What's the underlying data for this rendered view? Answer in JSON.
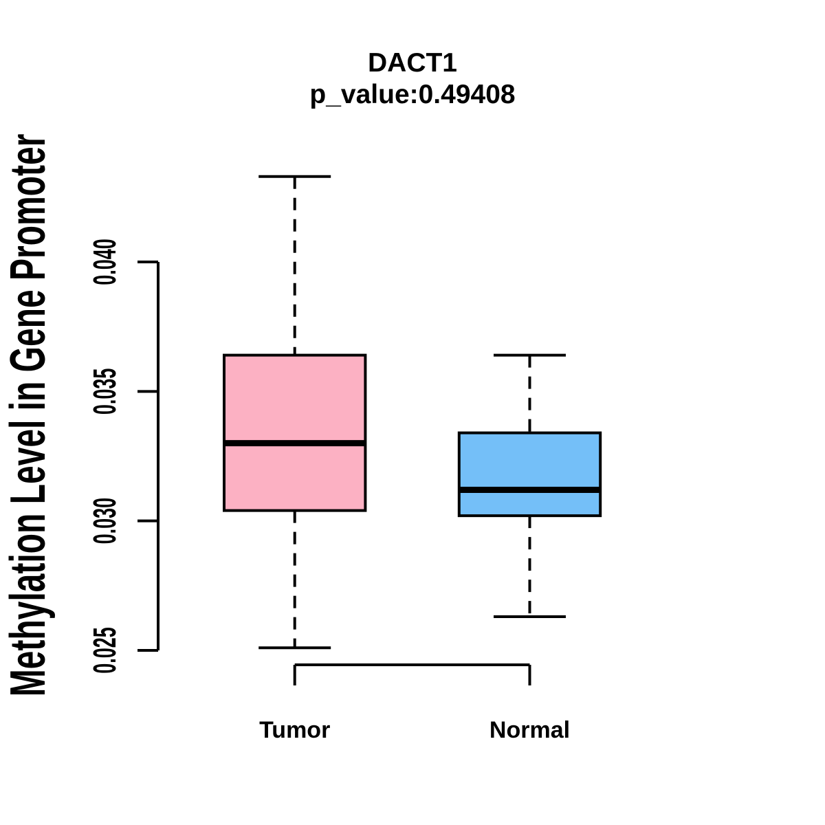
{
  "chart_data": {
    "type": "boxplot",
    "title": "DACT1",
    "subtitle": "p_value:0.49408",
    "p_value": 0.49408,
    "ylabel": "Methylation Level in Gene Promoter",
    "xlabel": "",
    "categories": [
      "Tumor",
      "Normal"
    ],
    "y_ticks": [
      0.025,
      0.03,
      0.035,
      0.04
    ],
    "y_tick_labels": [
      "0.025",
      "0.030",
      "0.035",
      "0.040"
    ],
    "ylim": [
      0.024,
      0.044
    ],
    "grid": false,
    "legend_position": "none",
    "whisker_style": "dashed",
    "series": [
      {
        "name": "Tumor",
        "fill_color": "#FCB1C3",
        "whisker_low": 0.0251,
        "q1": 0.0304,
        "median": 0.033,
        "q3": 0.0364,
        "whisker_high": 0.0433
      },
      {
        "name": "Normal",
        "fill_color": "#74BFF8",
        "whisker_low": 0.0263,
        "q1": 0.0302,
        "median": 0.0312,
        "q3": 0.0334,
        "whisker_high": 0.0364
      }
    ],
    "colors": {
      "tumor_box": "#FCB1C3",
      "normal_box": "#74BFF8",
      "line": "#000000",
      "background": "#FFFFFF"
    }
  }
}
